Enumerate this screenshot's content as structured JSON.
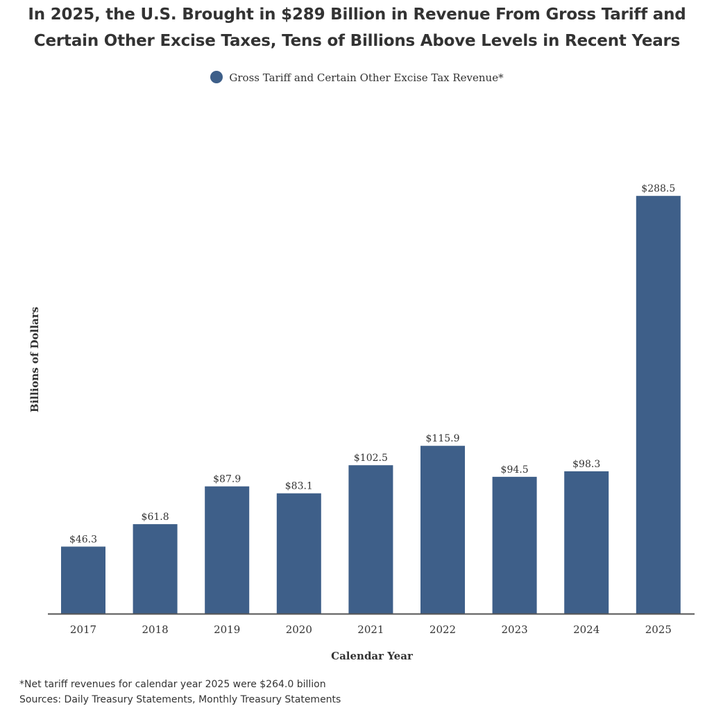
{
  "title_lines": [
    "In 2025, the U.S. Brought in $289 Billion in Revenue From Gross Tariff and",
    "Certain Other Excise Taxes, Tens of Billions Above Levels in Recent Years"
  ],
  "footnotes": {
    "note": "*Net tariff revenues for calendar year 2025 were $264.0 billion",
    "sources": "Sources: Daily Treasury Statements, Monthly Treasury Statements"
  },
  "colors": {
    "bar": "#3e5f89",
    "axis": "#555555",
    "text": "#333333"
  },
  "chart_data": {
    "type": "bar",
    "title": "In 2025, the U.S. Brought in $289 Billion in Revenue From Gross Tariff and Certain Other Excise Taxes, Tens of Billions Above Levels in Recent Years",
    "xlabel": "Calendar Year",
    "ylabel": "Billions of Dollars",
    "categories": [
      "2017",
      "2018",
      "2019",
      "2020",
      "2021",
      "2022",
      "2023",
      "2024",
      "2025"
    ],
    "series": [
      {
        "name": "Gross Tariff and Certain Other Excise Tax Revenue*",
        "values": [
          46.3,
          61.8,
          87.9,
          83.1,
          102.5,
          115.9,
          94.5,
          98.3,
          288.5
        ],
        "labels": [
          "$46.3",
          "$61.8",
          "$87.9",
          "$83.1",
          "$102.5",
          "$115.9",
          "$94.5",
          "$98.3",
          "$288.5"
        ]
      }
    ],
    "ylim": [
      0,
      300
    ],
    "grid": false,
    "legend_position": "top-center"
  }
}
